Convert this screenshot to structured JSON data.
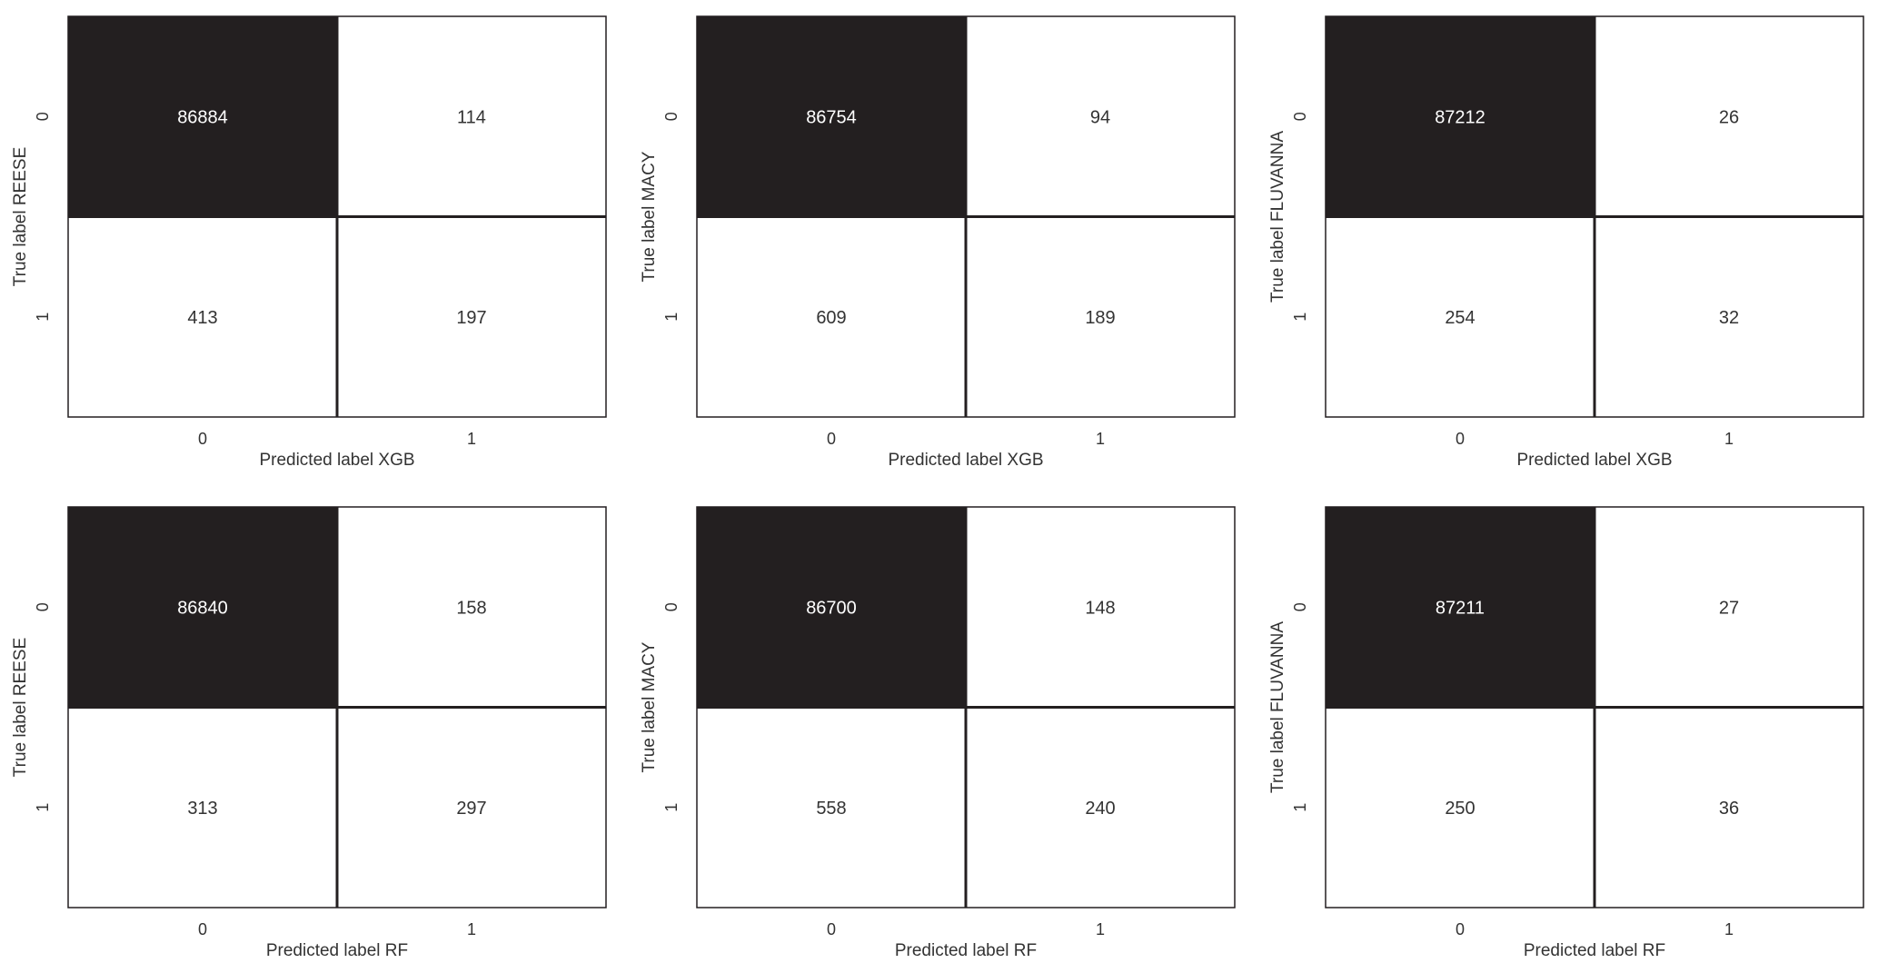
{
  "chart_data": [
    {
      "type": "heatmap",
      "matrix": [
        [
          86884,
          114
        ],
        [
          413,
          197
        ]
      ],
      "x_ticks": [
        "0",
        "1"
      ],
      "y_ticks": [
        "0",
        "1"
      ],
      "xlabel": "Predicted label XGB",
      "ylabel": "True label REESE",
      "colors": {
        "high": "#231f20",
        "low": "#ffffff",
        "text_on_dark": "#ffffff",
        "text_on_light": "#333333"
      }
    },
    {
      "type": "heatmap",
      "matrix": [
        [
          86754,
          94
        ],
        [
          609,
          189
        ]
      ],
      "x_ticks": [
        "0",
        "1"
      ],
      "y_ticks": [
        "0",
        "1"
      ],
      "xlabel": "Predicted label XGB",
      "ylabel": "True label MACY",
      "colors": {
        "high": "#231f20",
        "low": "#ffffff",
        "text_on_dark": "#ffffff",
        "text_on_light": "#333333"
      }
    },
    {
      "type": "heatmap",
      "matrix": [
        [
          87212,
          26
        ],
        [
          254,
          32
        ]
      ],
      "x_ticks": [
        "0",
        "1"
      ],
      "y_ticks": [
        "0",
        "1"
      ],
      "xlabel": "Predicted label XGB",
      "ylabel": "True label FLUVANNA",
      "colors": {
        "high": "#231f20",
        "low": "#ffffff",
        "text_on_dark": "#ffffff",
        "text_on_light": "#333333"
      }
    },
    {
      "type": "heatmap",
      "matrix": [
        [
          86840,
          158
        ],
        [
          313,
          297
        ]
      ],
      "x_ticks": [
        "0",
        "1"
      ],
      "y_ticks": [
        "0",
        "1"
      ],
      "xlabel": "Predicted label RF",
      "ylabel": "True label REESE",
      "colors": {
        "high": "#231f20",
        "low": "#ffffff",
        "text_on_dark": "#ffffff",
        "text_on_light": "#333333"
      }
    },
    {
      "type": "heatmap",
      "matrix": [
        [
          86700,
          148
        ],
        [
          558,
          240
        ]
      ],
      "x_ticks": [
        "0",
        "1"
      ],
      "y_ticks": [
        "0",
        "1"
      ],
      "xlabel": "Predicted label RF",
      "ylabel": "True label MACY",
      "colors": {
        "high": "#231f20",
        "low": "#ffffff",
        "text_on_dark": "#ffffff",
        "text_on_light": "#333333"
      }
    },
    {
      "type": "heatmap",
      "matrix": [
        [
          87211,
          27
        ],
        [
          250,
          36
        ]
      ],
      "x_ticks": [
        "0",
        "1"
      ],
      "y_ticks": [
        "0",
        "1"
      ],
      "xlabel": "Predicted label RF",
      "ylabel": "True label FLUVANNA",
      "colors": {
        "high": "#231f20",
        "low": "#ffffff",
        "text_on_dark": "#ffffff",
        "text_on_light": "#333333"
      }
    }
  ]
}
